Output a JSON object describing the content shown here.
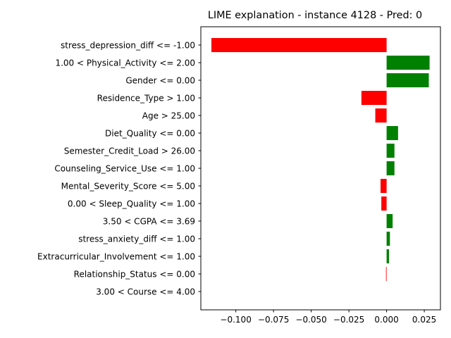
{
  "chart_data": {
    "type": "bar",
    "orientation": "horizontal",
    "title": "LIME explanation - instance 4128 - Pred: 0",
    "categories": [
      "stress_depression_diff <= -1.00",
      "1.00 < Physical_Activity <= 2.00",
      "Gender <= 0.00",
      "Residence_Type > 1.00",
      "Age > 25.00",
      "Diet_Quality <= 0.00",
      "Semester_Credit_Load > 26.00",
      "Counseling_Service_Use <= 1.00",
      "Mental_Severity_Score <= 5.00",
      "0.00 < Sleep_Quality <= 1.00",
      "3.50 < CGPA <= 3.69",
      "stress_anxiety_diff <= 1.00",
      "Extracurricular_Involvement <= 1.00",
      "Relationship_Status <= 0.00",
      "3.00 < Course <= 4.00"
    ],
    "values": [
      -0.1162,
      0.0285,
      0.028,
      -0.0167,
      -0.0075,
      0.0076,
      0.0052,
      0.0052,
      -0.004,
      -0.0035,
      0.004,
      0.0022,
      0.0016,
      -0.0004,
      0.0
    ],
    "xlim": [
      -0.1232,
      0.0357
    ],
    "xticks": [
      -0.1,
      -0.075,
      -0.05,
      -0.025,
      0.0,
      0.025
    ],
    "xtick_labels": [
      "−0.100",
      "−0.075",
      "−0.050",
      "−0.025",
      "0.000",
      "0.025"
    ],
    "colors": {
      "positive": "#008000",
      "negative": "#ff0000",
      "axis": "#000000",
      "background": "#ffffff"
    },
    "grid": false,
    "xlabel": "",
    "ylabel": ""
  }
}
